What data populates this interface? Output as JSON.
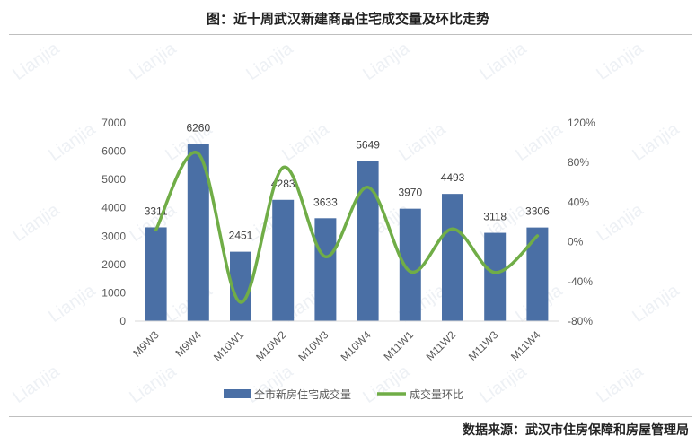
{
  "title": "图：近十周武汉新建商品住宅成交量及环比走势",
  "source": "数据来源：武汉市住房保障和房屋管理局",
  "watermark": "Lianjia",
  "chart_data": {
    "type": "bar",
    "categories": [
      "M9W3",
      "M9W4",
      "M10W1",
      "M10W2",
      "M10W3",
      "M10W4",
      "M11W1",
      "M11W2",
      "M11W3",
      "M11W4"
    ],
    "series": [
      {
        "name": "全市新房住宅成交量",
        "type": "bar",
        "axis": "left",
        "color": "#4a6fa5",
        "values": [
          3311,
          6260,
          2451,
          4283,
          3633,
          5649,
          3970,
          4493,
          3118,
          3306
        ],
        "data_labels": [
          "3311",
          "6260",
          "2451",
          "4283",
          "3633",
          "5649",
          "3970",
          "4493",
          "3118",
          "3306"
        ]
      },
      {
        "name": "成交量环比",
        "type": "line",
        "axis": "right",
        "color": "#70ad47",
        "values": [
          12,
          89,
          -61,
          75,
          -15,
          55,
          -30,
          13,
          -31,
          6
        ]
      }
    ],
    "ylim_left": [
      0,
      7000
    ],
    "yticks_left": [
      "0",
      "1000",
      "2000",
      "3000",
      "4000",
      "5000",
      "6000",
      "7000"
    ],
    "ylim_right": [
      -80,
      120
    ],
    "yticks_right": [
      "-80%",
      "-40%",
      "0%",
      "40%",
      "80%",
      "120%"
    ],
    "legend_position": "bottom",
    "grid": false
  }
}
